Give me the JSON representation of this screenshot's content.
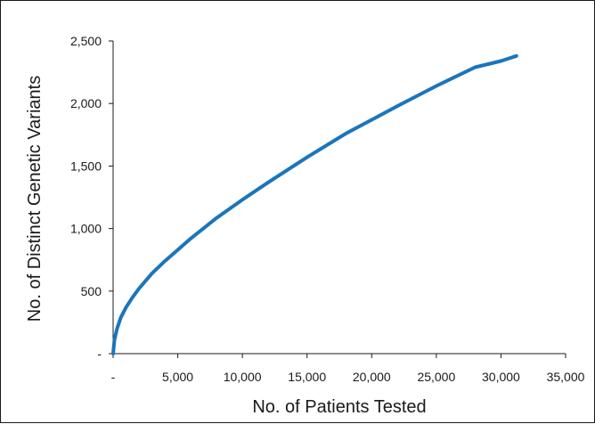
{
  "chart_data": {
    "type": "line",
    "title": "",
    "xlabel": "No. of Patients Tested",
    "ylabel": "No. of Distinct Genetic Variants",
    "xlim": [
      0,
      35000
    ],
    "ylim": [
      0,
      2500
    ],
    "x_ticks": [
      0,
      5000,
      10000,
      15000,
      20000,
      25000,
      30000,
      35000
    ],
    "x_tick_labels": [
      "-",
      "5,000",
      "10,000",
      "15,000",
      "20,000",
      "25,000",
      "30,000",
      "35,000"
    ],
    "y_ticks": [
      0,
      500,
      1000,
      1500,
      2000,
      2500
    ],
    "y_tick_labels": [
      "-",
      "500",
      "1,000",
      "1,500",
      "2,000",
      "2,500"
    ],
    "grid": false,
    "legend": "none",
    "series": [
      {
        "color": "#1b75bb",
        "x": [
          0,
          100,
          300,
          600,
          1000,
          1500,
          2000,
          3000,
          4000,
          5000,
          6000,
          8000,
          10000,
          12000,
          15000,
          18000,
          20000,
          22000,
          25000,
          28000,
          30000,
          31200
        ],
        "y": [
          0,
          110,
          200,
          290,
          370,
          450,
          520,
          640,
          740,
          830,
          920,
          1085,
          1230,
          1370,
          1570,
          1760,
          1870,
          1980,
          2140,
          2290,
          2340,
          2380
        ]
      }
    ]
  }
}
